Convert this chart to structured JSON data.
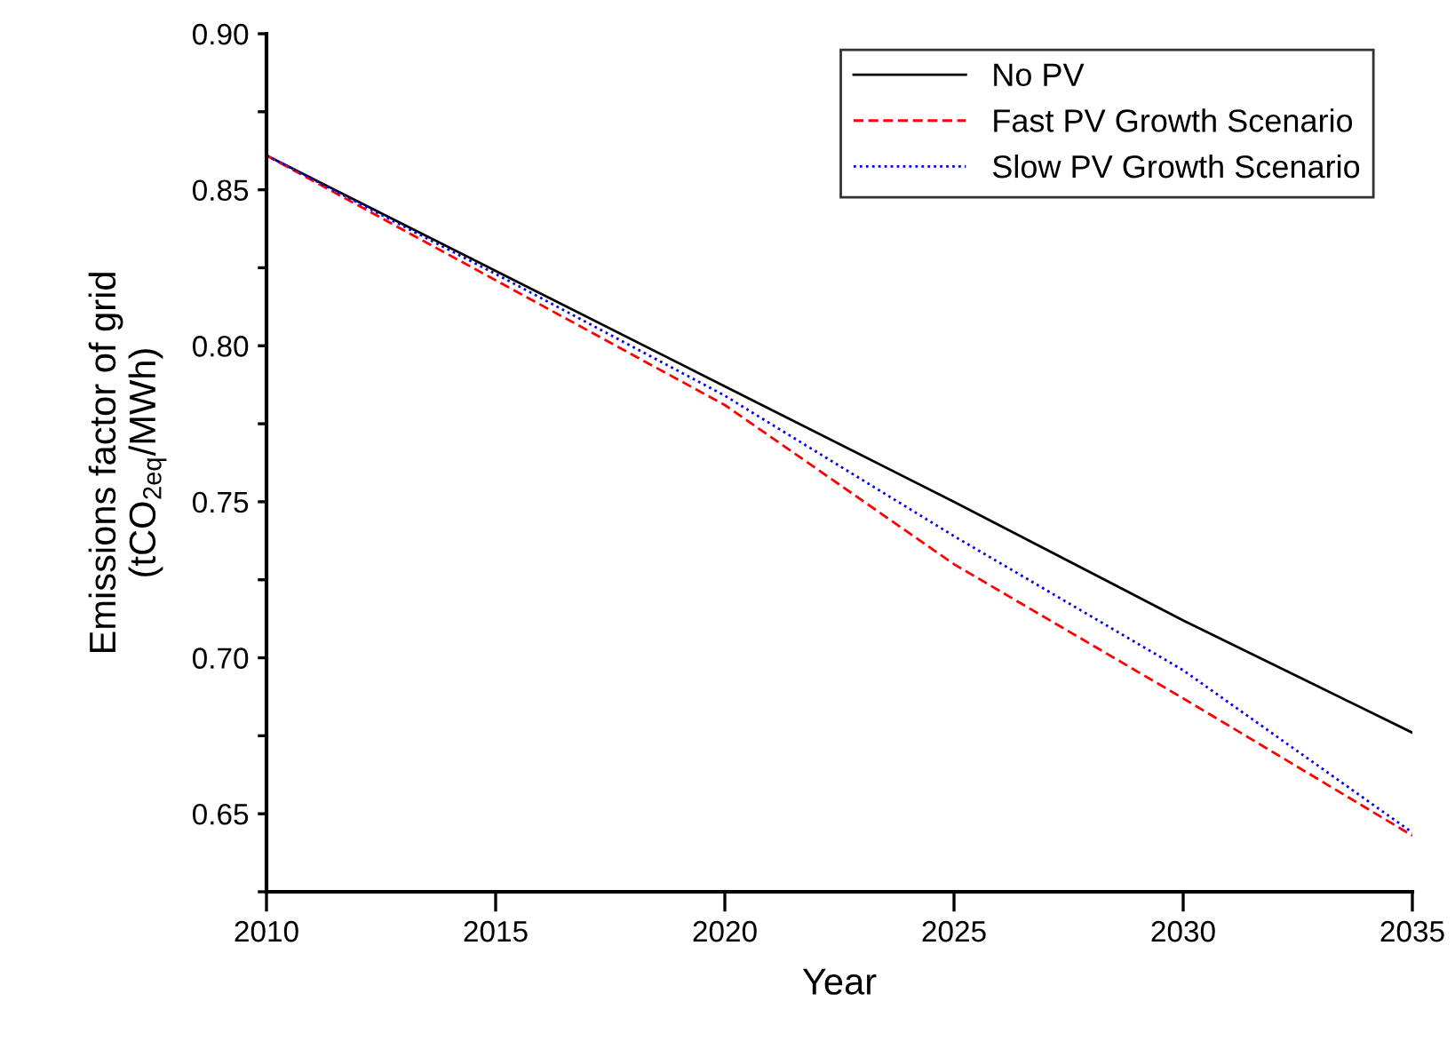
{
  "chart_data": {
    "type": "line",
    "xlabel": "Year",
    "ylabel": "Emissions factor of grid\n(tCO$_{2eq}$/MWh)",
    "x": [
      2010,
      2015,
      2020,
      2025,
      2030,
      2035
    ],
    "series": [
      {
        "name": "No PV",
        "color": "#000000",
        "line_style": "solid",
        "values": [
          0.861,
          0.824,
          0.787,
          0.75,
          0.712,
          0.676
        ]
      },
      {
        "name": "Fast PV Growth Scenario",
        "color": "#ff0000",
        "line_style": "dashed",
        "values": [
          0.861,
          0.821,
          0.781,
          0.73,
          0.687,
          0.643
        ]
      },
      {
        "name": "Slow PV Growth Scenario",
        "color": "#0000ff",
        "line_style": "dotted",
        "values": [
          0.861,
          0.823,
          0.784,
          0.739,
          0.696,
          0.644
        ]
      }
    ],
    "xlim": [
      2010,
      2035
    ],
    "xticks": [
      2010,
      2015,
      2020,
      2025,
      2030,
      2035
    ],
    "ylim": [
      0.625,
      0.9
    ],
    "yticks": [
      {
        "value": 0.625,
        "label": null
      },
      0.65,
      {
        "value": 0.675,
        "label": null
      },
      {
        "value": 0.7,
        "label": "0.70"
      },
      {
        "value": 0.725,
        "label": null
      },
      0.75,
      {
        "value": 0.775,
        "label": null
      },
      {
        "value": 0.8,
        "label": "0.80"
      },
      {
        "value": 0.825,
        "label": null
      },
      0.85,
      {
        "value": 0.875,
        "label": null
      },
      {
        "value": 0.9,
        "label": "0.90"
      }
    ],
    "grid": false,
    "legend": "top right",
    "marker": "none"
  }
}
